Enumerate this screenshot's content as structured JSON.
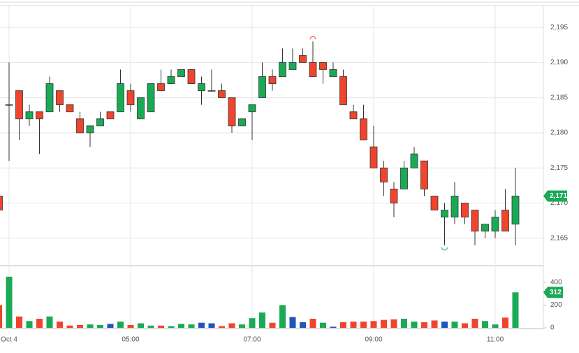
{
  "chart_data": {
    "type": "candlestick",
    "categories": [
      null,
      "Oct 4",
      null,
      null,
      null,
      null,
      null,
      null,
      null,
      null,
      null,
      null,
      null,
      "05:00",
      null,
      null,
      null,
      null,
      null,
      null,
      null,
      null,
      null,
      null,
      null,
      "07:00",
      null,
      null,
      null,
      null,
      null,
      null,
      null,
      null,
      null,
      null,
      null,
      "09:00",
      null,
      null,
      null,
      null,
      null,
      null,
      null,
      null,
      null,
      null,
      null,
      "11:00",
      null,
      null
    ],
    "open": [
      2171,
      2184,
      2186,
      2182,
      2183,
      2183,
      2186,
      2184,
      2182,
      2180,
      2181,
      2183,
      2183,
      2186,
      2182,
      2183,
      2187,
      2187,
      2188,
      2189,
      2186,
      2186,
      2186,
      2185,
      2181,
      2183,
      2185,
      2188,
      2188,
      2189,
      2191,
      2190,
      2190,
      2188,
      2188,
      2183,
      2182,
      2178,
      2175,
      2172,
      2172,
      2175,
      2176,
      2171,
      2168,
      2168,
      2170,
      2169,
      2166,
      2166,
      2169,
      2167
    ],
    "high": [
      2171,
      2190,
      2186,
      2184,
      2183,
      2188,
      2186,
      2184,
      2183,
      2181,
      2183,
      2183,
      2189,
      2187,
      2185,
      2187,
      2189,
      2189,
      2189,
      2189,
      2188,
      2189,
      2187,
      2185,
      2182,
      2184,
      2190,
      2189,
      2192,
      2192,
      2192,
      2193,
      2190,
      2190,
      2189,
      2184,
      2184,
      2181,
      2176,
      2173,
      2176,
      2178,
      2176,
      2171,
      2170,
      2173,
      2170,
      2169,
      2167,
      2169,
      2172,
      2175
    ],
    "low": [
      2169,
      2176,
      2179,
      2181,
      2177,
      2183,
      2183,
      2183,
      2180,
      2178,
      2181,
      2182,
      2183,
      2183,
      2182,
      2183,
      2186,
      2187,
      2188,
      2187,
      2184,
      2186,
      2185,
      2180,
      2181,
      2179,
      2185,
      2186,
      2188,
      2189,
      2190,
      2188,
      2187,
      2188,
      2184,
      2182,
      2179,
      2175,
      2171,
      2168,
      2172,
      2175,
      2171,
      2169,
      2164,
      2167,
      2167,
      2164,
      2165,
      2165,
      2166,
      2164
    ],
    "close": [
      2169,
      2184,
      2182,
      2183,
      2182,
      2187,
      2184,
      2183,
      2180,
      2181,
      2182,
      2182,
      2187,
      2184,
      2185,
      2187,
      2186,
      2188,
      2189,
      2187,
      2187,
      2186,
      2185,
      2181,
      2182,
      2184,
      2188,
      2187,
      2190,
      2190,
      2190,
      2188,
      2189,
      2189,
      2184,
      2182,
      2179,
      2175,
      2173,
      2170,
      2175,
      2177,
      2172,
      2169,
      2169,
      2171,
      2168,
      2166,
      2167,
      2168,
      2166,
      2171
    ],
    "volume": [
      200,
      450,
      100,
      60,
      80,
      100,
      55,
      20,
      25,
      30,
      25,
      35,
      55,
      25,
      40,
      20,
      20,
      15,
      35,
      30,
      45,
      40,
      15,
      40,
      30,
      85,
      135,
      45,
      200,
      95,
      50,
      80,
      45,
      10,
      50,
      55,
      55,
      60,
      70,
      75,
      80,
      55,
      50,
      65,
      55,
      55,
      40,
      80,
      60,
      30,
      90,
      312
    ],
    "volume_colors": [
      "#f0442c",
      "#1aaa55",
      "#f0442c",
      "#1aaa55",
      "#f0442c",
      "#1aaa55",
      "#f0442c",
      "#f0442c",
      "#f0442c",
      "#1aaa55",
      "#1aaa55",
      "#2255bb",
      "#1aaa55",
      "#f0442c",
      "#1aaa55",
      "#1aaa55",
      "#f0442c",
      "#1aaa55",
      "#1aaa55",
      "#1aaa55",
      "#2255bb",
      "#2255bb",
      "#f0442c",
      "#f0442c",
      "#1aaa55",
      "#1aaa55",
      "#1aaa55",
      "#f0442c",
      "#1aaa55",
      "#2255bb",
      "#2255bb",
      "#f0442c",
      "#1aaa55",
      "#2255bb",
      "#f0442c",
      "#f0442c",
      "#f0442c",
      "#f0442c",
      "#f0442c",
      "#f0442c",
      "#1aaa55",
      "#1aaa55",
      "#f0442c",
      "#f0442c",
      "#2255bb",
      "#1aaa55",
      "#f0442c",
      "#f0442c",
      "#1aaa55",
      "#1aaa55",
      "#f0442c",
      "#1aaa55"
    ],
    "up_color": "#1aaa55",
    "down_color": "#f0442c",
    "ylim": [
      2161.1,
      2197.9
    ],
    "yticks": [
      {
        "value": 2165,
        "label": "2,165"
      },
      {
        "value": 2170,
        "label": "2,170"
      },
      {
        "value": 2175,
        "label": "2,175"
      },
      {
        "value": 2180,
        "label": "2,180"
      },
      {
        "value": 2185,
        "label": "2,185"
      },
      {
        "value": 2190,
        "label": "2,190"
      },
      {
        "value": 2195,
        "label": "2,195"
      }
    ],
    "y2lim": [
      -6,
      535
    ],
    "y2ticks": [
      0,
      200,
      400
    ],
    "last_price": {
      "value": 2171,
      "label": "2,171"
    },
    "last_volume": 312,
    "grid": true
  }
}
